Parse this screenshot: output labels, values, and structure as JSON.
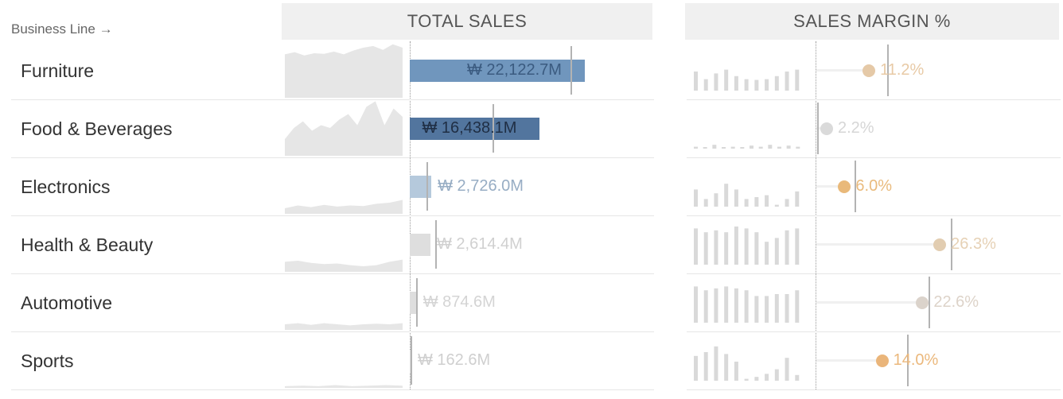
{
  "header": {
    "dimension_label": "Business Line →",
    "total_sales_title": "TOTAL SALES",
    "margin_title": "SALES MARGIN %"
  },
  "chart_data": {
    "type": "table",
    "rows": [
      {
        "name": "Furniture",
        "total_sales_label": "₩ 22,122.7M",
        "total_sales": 22122.7,
        "target": 20300,
        "margin": 11.2,
        "margin_label": "11.2%",
        "margin_target": 15.0,
        "bar_color": "#7096bd",
        "label_color": "#3b5b80",
        "dot_color": "#e5c9a7",
        "margin_label_color": "#e8caa6",
        "sparkline": [
          0.78,
          0.82,
          0.76,
          0.8,
          0.79,
          0.83,
          0.78,
          0.85,
          0.9,
          0.93,
          0.86,
          0.96,
          0.9
        ],
        "margin_bars": [
          0.5,
          0.3,
          0.45,
          0.55,
          0.38,
          0.3,
          0.28,
          0.3,
          0.38,
          0.5,
          0.55
        ]
      },
      {
        "name": "Food & Beverages",
        "total_sales_label": "₩ 16,438.1M",
        "total_sales": 16438.1,
        "target": 10500,
        "margin": 2.2,
        "margin_label": "2.2%",
        "margin_target": 0.2,
        "bar_color": "#52759e",
        "label_color": "#1f2e44",
        "dot_color": "#dadada",
        "margin_label_color": "#d6d6d6",
        "sparkline": [
          0.3,
          0.5,
          0.62,
          0.45,
          0.55,
          0.5,
          0.65,
          0.75,
          0.55,
          0.88,
          0.98,
          0.55,
          0.85,
          0.7
        ],
        "margin_bars": [
          0.05,
          0.02,
          0.1,
          0.02,
          0.05,
          0.02,
          0.08,
          0.05,
          0.1,
          0.05,
          0.08,
          0.05
        ]
      },
      {
        "name": "Electronics",
        "total_sales_label": "₩ 2,726.0M",
        "total_sales": 2726.0,
        "target": 2100,
        "margin": 6.0,
        "margin_label": "6.0%",
        "margin_target": 8.1,
        "bar_color": "#b5c9dc",
        "label_color": "#97adc4",
        "dot_color": "#e9b97a",
        "margin_label_color": "#e9ba7c",
        "sparkline": [
          0.1,
          0.15,
          0.12,
          0.16,
          0.13,
          0.15,
          0.14,
          0.18,
          0.2,
          0.25
        ],
        "margin_bars": [
          0.45,
          0.2,
          0.35,
          0.6,
          0.45,
          0.2,
          0.25,
          0.3,
          0.05,
          0.2,
          0.4
        ]
      },
      {
        "name": "Health & Beauty",
        "total_sales_label": "₩ 2,614.4M",
        "total_sales": 2614.4,
        "target": 3200,
        "margin": 26.3,
        "margin_label": "26.3%",
        "margin_target": 28.6,
        "bar_color": "#dedede",
        "label_color": "#d0d0d0",
        "dot_color": "#e2cdb1",
        "margin_label_color": "#e6d1b5",
        "sparkline": [
          0.18,
          0.2,
          0.16,
          0.14,
          0.15,
          0.12,
          0.1,
          0.12,
          0.18,
          0.22
        ],
        "margin_bars": [
          0.95,
          0.85,
          0.9,
          0.85,
          1.0,
          0.95,
          0.85,
          0.6,
          0.7,
          0.9,
          0.95
        ]
      },
      {
        "name": "Automotive",
        "total_sales_label": "₩ 874.6M",
        "total_sales": 874.6,
        "target": 850,
        "margin": 22.6,
        "margin_label": "22.6%",
        "margin_target": 23.9,
        "bar_color": "#dedede",
        "label_color": "#d4d4d4",
        "dot_color": "#dbd3cb",
        "margin_label_color": "#ddd3c9",
        "sparkline": [
          0.1,
          0.12,
          0.09,
          0.12,
          0.1,
          0.08,
          0.1,
          0.11,
          0.1,
          0.12
        ],
        "margin_bars": [
          0.95,
          0.85,
          0.9,
          0.95,
          0.9,
          0.85,
          0.7,
          0.7,
          0.75,
          0.75,
          0.85
        ]
      },
      {
        "name": "Sports",
        "total_sales_label": "₩ 162.6M",
        "total_sales": 162.6,
        "target": 60,
        "margin": 14.0,
        "margin_label": "14.0%",
        "margin_target": 19.4,
        "bar_color": "#dedede",
        "label_color": "#cfcfcf",
        "dot_color": "#eab57a",
        "margin_label_color": "#ebb87c",
        "sparkline": [
          0.03,
          0.04,
          0.03,
          0.05,
          0.03,
          0.04,
          0.05,
          0.04
        ],
        "margin_bars": [
          0.65,
          0.75,
          0.9,
          0.7,
          0.5,
          0.05,
          0.1,
          0.18,
          0.3,
          0.6,
          0.15
        ]
      }
    ]
  }
}
